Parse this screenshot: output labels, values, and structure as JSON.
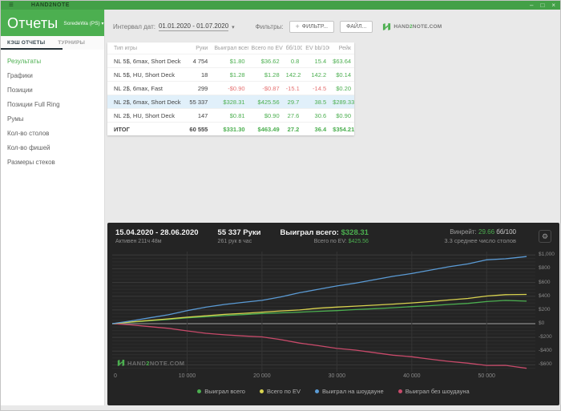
{
  "titlebar": {
    "title": "HAND2NOTE",
    "menu_icon": "≡",
    "controls": {
      "minimize": "–",
      "maximize": "□",
      "close": "×"
    }
  },
  "sidebar": {
    "title": "Отчеты",
    "account": "SoredeWa (PS)",
    "account_caret": "▾",
    "tabs": [
      {
        "label": "КЭШ ОТЧЕТЫ",
        "active": true
      },
      {
        "label": "ТУРНИРЫ",
        "active": false
      }
    ],
    "items": [
      {
        "label": "Результаты",
        "active": true
      },
      {
        "label": "Графики",
        "active": false
      },
      {
        "label": "Позиции",
        "active": false
      },
      {
        "label": "Позиции Full Ring",
        "active": false
      },
      {
        "label": "Румы",
        "active": false
      },
      {
        "label": "Кол-во столов",
        "active": false
      },
      {
        "label": "Кол-во фишей",
        "active": false
      },
      {
        "label": "Размеры стеков",
        "active": false
      }
    ]
  },
  "toolbar": {
    "date_label": "Интервал дат:",
    "date_range": "01.01.2020 - 01.07.2020",
    "date_caret": "▾",
    "filters_label": "Фильтры:",
    "filter_plus": "+",
    "filter_button": "ФИЛЬТР...",
    "file_button": "ФАЙЛ...",
    "brand_prefix": "HAND",
    "brand_accent": "2",
    "brand_suffix": "NOTE.COM"
  },
  "table": {
    "columns": [
      "Тип игры",
      "Руки",
      "Выиграл всего",
      "Всего по EV",
      "бб/100",
      "EV bb/100",
      "Рейк"
    ],
    "rows": [
      {
        "cells": [
          "NL 5$, 6max, Short Deck",
          "4 754",
          "$1.80",
          "$36.62",
          "0.8",
          "15.4",
          "$63.64"
        ],
        "highlight": false,
        "total": false
      },
      {
        "cells": [
          "NL 5$, HU, Short Deck",
          "18",
          "$1.28",
          "$1.28",
          "142.2",
          "142.2",
          "$0.14"
        ],
        "highlight": false,
        "total": false
      },
      {
        "cells": [
          "NL 2$, 6max, Fast",
          "299",
          "-$0.90",
          "-$0.87",
          "-15.1",
          "-14.5",
          "$0.20"
        ],
        "highlight": false,
        "total": false
      },
      {
        "cells": [
          "NL 2$, 6max, Short Deck",
          "55 337",
          "$328.31",
          "$425.56",
          "29.7",
          "38.5",
          "$289.33"
        ],
        "highlight": true,
        "total": false
      },
      {
        "cells": [
          "NL 2$, HU, Short Deck",
          "147",
          "$0.81",
          "$0.90",
          "27.6",
          "30.6",
          "$0.90"
        ],
        "highlight": false,
        "total": false
      },
      {
        "cells": [
          "ИТОГ",
          "60 555",
          "$331.30",
          "$463.49",
          "27.2",
          "36.4",
          "$354.21"
        ],
        "highlight": false,
        "total": true
      }
    ]
  },
  "chart_panel": {
    "date_range": "15.04.2020 - 28.06.2020",
    "active_time": "Активен 211ч 48м",
    "hands": "55 337 Руки",
    "hands_per_hour": "261 рук в час",
    "won_label": "Выиграл всего:",
    "won_value": "$328.31",
    "ev_label": "Всего по EV:",
    "ev_value": "$425.56",
    "winrate_label": "Винрейт:",
    "winrate_value": "29.66",
    "winrate_unit": "бб/100",
    "avg_tables": "3.3 среднее число столов",
    "gear_icon": "⚙",
    "watermark_prefix": "HAND",
    "watermark_accent": "2",
    "watermark_suffix": "NOTE.COM"
  },
  "chart_data": {
    "type": "line",
    "title": "",
    "xlabel": "",
    "ylabel": "",
    "xlim": [
      0,
      56500
    ],
    "ylim": [
      -700,
      1050
    ],
    "grid": true,
    "legend_position": "bottom",
    "x_ticks": [
      {
        "v": 0,
        "label": "0"
      },
      {
        "v": 10000,
        "label": "10 000"
      },
      {
        "v": 20000,
        "label": "20 000"
      },
      {
        "v": 30000,
        "label": "30 000"
      },
      {
        "v": 40000,
        "label": "40 000"
      },
      {
        "v": 50000,
        "label": "50 000"
      }
    ],
    "y_ticks": [
      {
        "v": 1000,
        "label": "$1,000"
      },
      {
        "v": 800,
        "label": "$800"
      },
      {
        "v": 600,
        "label": "$600"
      },
      {
        "v": 400,
        "label": "$400"
      },
      {
        "v": 200,
        "label": "$200"
      },
      {
        "v": 0,
        "label": "$0"
      },
      {
        "v": -200,
        "label": "-$200"
      },
      {
        "v": -400,
        "label": "-$400"
      },
      {
        "v": -600,
        "label": "-$600"
      }
    ],
    "x": [
      0,
      2500,
      5000,
      7500,
      10000,
      12500,
      15000,
      17500,
      20000,
      22500,
      25000,
      27500,
      30000,
      32500,
      35000,
      37500,
      40000,
      42500,
      45000,
      47500,
      50000,
      52500,
      55337
    ],
    "series": [
      {
        "name": "Выиграл всего",
        "color": "#4caf50",
        "values": [
          0,
          22,
          42,
          62,
          85,
          100,
          118,
          132,
          148,
          158,
          168,
          180,
          190,
          205,
          218,
          232,
          248,
          262,
          280,
          295,
          322,
          338,
          328
        ]
      },
      {
        "name": "Всего по EV",
        "color": "#d9d34f",
        "values": [
          0,
          25,
          48,
          70,
          95,
          115,
          135,
          150,
          168,
          185,
          200,
          225,
          242,
          255,
          270,
          285,
          302,
          322,
          345,
          368,
          402,
          422,
          426
        ]
      },
      {
        "name": "Выиграл на шоудауне",
        "color": "#5b9bd5",
        "values": [
          0,
          40,
          85,
          130,
          190,
          240,
          280,
          310,
          340,
          390,
          450,
          500,
          550,
          590,
          640,
          690,
          730,
          780,
          830,
          870,
          930,
          945,
          978
        ]
      },
      {
        "name": "Выиграл без шоудауна",
        "color": "#c84a6a",
        "values": [
          0,
          -18,
          -43,
          -68,
          -105,
          -140,
          -162,
          -178,
          -192,
          -232,
          -282,
          -320,
          -360,
          -385,
          -422,
          -458,
          -482,
          -518,
          -550,
          -575,
          -608,
          -607,
          -650
        ]
      }
    ]
  },
  "colors": {
    "accent": "#4caf50",
    "titlebar": "#43a047",
    "negative": "#e57373",
    "highlight_row": "#e1f0fa",
    "panel_bg": "#242424",
    "grid_minor": "#2d2d2d",
    "grid_major": "#3a3a3a",
    "zero_line": "#8a8a8a"
  }
}
